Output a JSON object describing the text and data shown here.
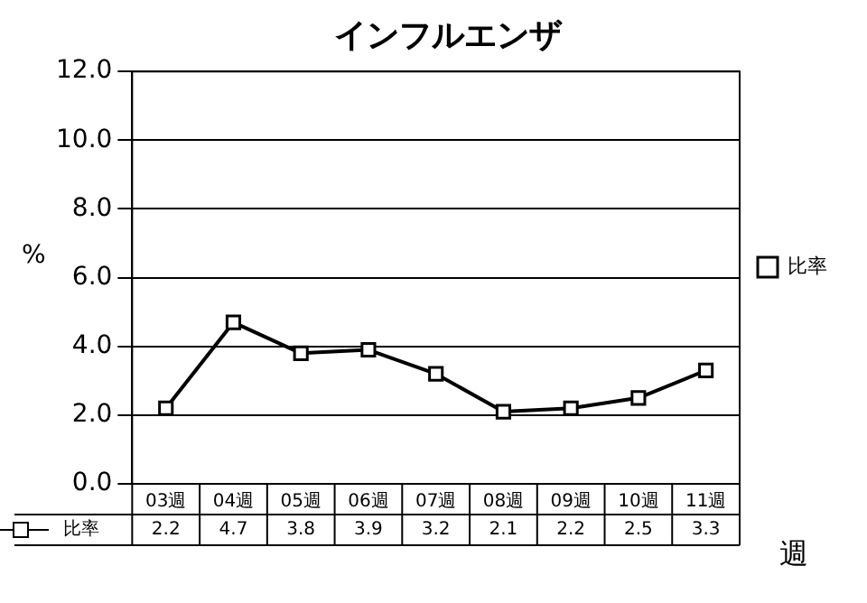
{
  "chart_data": {
    "type": "line",
    "title": "インフルエンザ",
    "xlabel": "週",
    "ylabel": "%",
    "categories": [
      "03週",
      "04週",
      "05週",
      "06週",
      "07週",
      "08週",
      "09週",
      "10週",
      "11週"
    ],
    "series": [
      {
        "name": "比率",
        "color": "#000000",
        "values": [
          2.2,
          4.7,
          3.8,
          3.9,
          3.2,
          2.1,
          2.2,
          2.5,
          3.3
        ]
      }
    ],
    "ylim": [
      0,
      12
    ],
    "yticks": [
      {
        "value": 0,
        "label": "0.0"
      },
      {
        "value": 2,
        "label": "2.0"
      },
      {
        "value": 4,
        "label": "4.0"
      },
      {
        "value": 6,
        "label": "6.0"
      },
      {
        "value": 8,
        "label": "8.0"
      },
      {
        "value": 10,
        "label": "10.0"
      },
      {
        "value": 12,
        "label": "12.0"
      }
    ],
    "grid": "y",
    "legend": "right",
    "marker": "square",
    "line_style": "solid",
    "data_labels": true
  }
}
